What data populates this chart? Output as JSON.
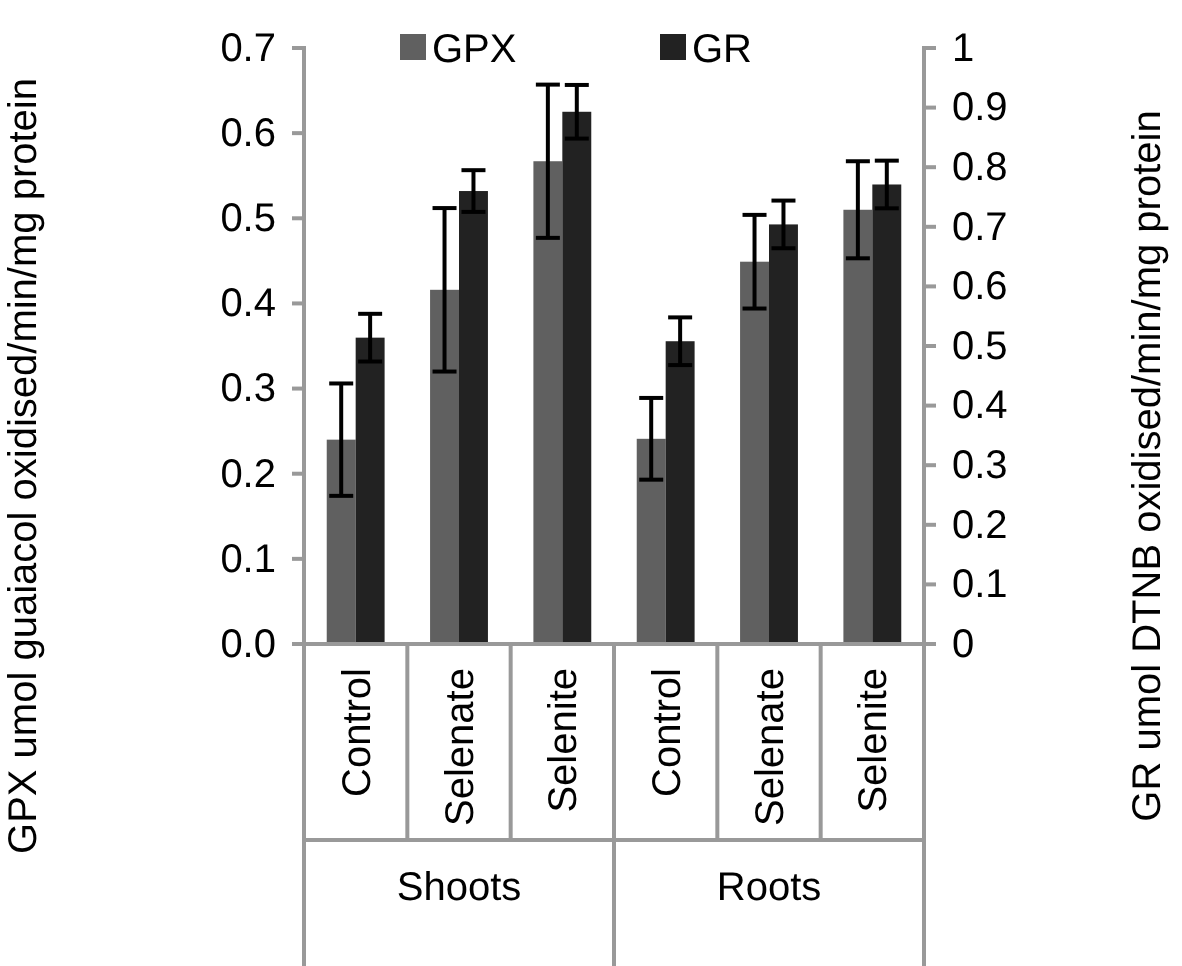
{
  "chart_data": {
    "type": "bar",
    "categories": [
      "Control",
      "Selenate",
      "Selenite",
      "Control",
      "Selenate",
      "Selenite"
    ],
    "ylabel": "GPX umol guaiacol oxidised/min/mg protein",
    "y2label": "GR umol DTNB oxidised/min/mg protein",
    "series": [
      {
        "name": "GPX",
        "color": "#606060",
        "values": [
          0.24,
          0.416,
          0.567,
          0.241,
          0.449,
          0.51
        ],
        "errors": [
          0.066,
          0.096,
          0.09,
          0.048,
          0.055,
          0.057
        ]
      },
      {
        "name": "GR",
        "color": "#222222",
        "axis": "y2",
        "values": [
          0.514,
          0.76,
          0.893,
          0.508,
          0.704,
          0.771
        ],
        "errors": [
          0.04,
          0.035,
          0.045,
          0.04,
          0.04,
          0.04
        ]
      }
    ],
    "ylim": [
      0,
      0.7
    ],
    "yticks": [
      {
        "value": 0,
        "label": "0.0"
      },
      0.1,
      0.2,
      0.3,
      0.4,
      0.5,
      0.6,
      0.7
    ],
    "y2lim": [
      0,
      1
    ],
    "y2ticks": [
      0,
      0.1,
      0.2,
      0.3,
      0.4,
      0.5,
      0.6,
      0.7,
      0.8,
      0.9,
      1
    ],
    "annotations": [
      "Shoots",
      "Roots"
    ],
    "legend": "top",
    "grid": false
  }
}
